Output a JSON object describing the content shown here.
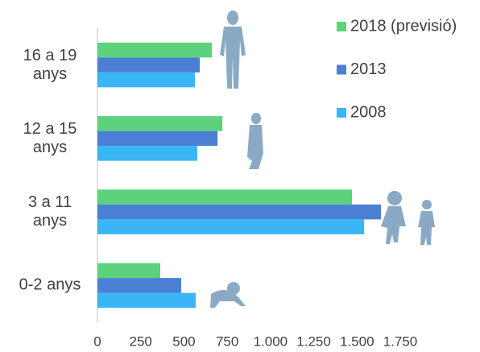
{
  "chart_data": {
    "type": "bar",
    "orientation": "horizontal",
    "categories": [
      "16 a 19 anys",
      "12 a 15 anys",
      "3 a 11 anys",
      "0-2 anys"
    ],
    "series": [
      {
        "name": "2018 (previsió)",
        "color": "#5cd27d",
        "values": [
          661,
          722,
          1471,
          363
        ]
      },
      {
        "name": "2013",
        "color": "#4a7fd3",
        "values": [
          591,
          694,
          1639,
          484
        ]
      },
      {
        "name": "2008",
        "color": "#38b6f6",
        "values": [
          563,
          577,
          1541,
          568
        ]
      }
    ],
    "xlim": [
      0,
      1750
    ],
    "xticks": [
      0,
      250,
      500,
      750,
      {
        "value": 1000,
        "label": "1.000"
      },
      {
        "value": 1250,
        "label": "1.250"
      },
      {
        "value": 1500,
        "label": "1.500"
      },
      {
        "value": 1750,
        "label": "1.750"
      }
    ],
    "grid": false
  }
}
